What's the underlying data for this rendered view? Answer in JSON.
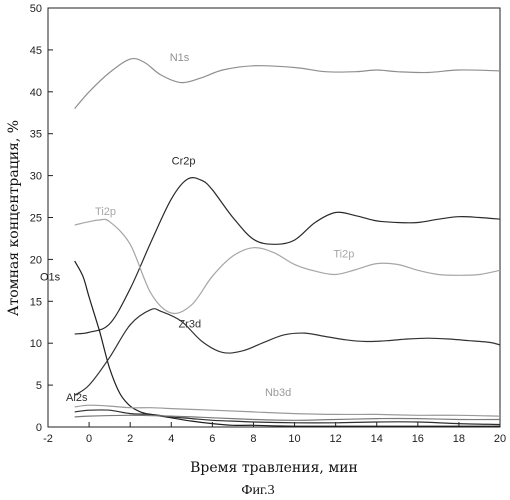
{
  "chart_data": {
    "type": "line",
    "xlabel": "Время травления, мин",
    "ylabel": "Атомная концентрация, %",
    "caption": "Фиг.3",
    "xlim": [
      -2,
      20
    ],
    "ylim": [
      0,
      50
    ],
    "xticks": [
      -2,
      0,
      2,
      4,
      6,
      8,
      10,
      12,
      14,
      16,
      18,
      20
    ],
    "yticks": [
      0,
      5,
      10,
      15,
      20,
      25,
      30,
      35,
      40,
      45,
      50
    ],
    "grid": false,
    "series": [
      {
        "name": "N1s",
        "color": "#8f8f8f",
        "label_at": [
          4.4,
          43.7
        ],
        "points": [
          [
            -0.7,
            38.0
          ],
          [
            0,
            40.0
          ],
          [
            1,
            42.3
          ],
          [
            2,
            43.9
          ],
          [
            2.7,
            43.5
          ],
          [
            3.5,
            42.0
          ],
          [
            4.5,
            41.1
          ],
          [
            5.5,
            41.7
          ],
          [
            6.5,
            42.6
          ],
          [
            8,
            43.1
          ],
          [
            10,
            42.9
          ],
          [
            11.5,
            42.4
          ],
          [
            13,
            42.4
          ],
          [
            14,
            42.6
          ],
          [
            15,
            42.4
          ],
          [
            16.5,
            42.3
          ],
          [
            18,
            42.6
          ],
          [
            20,
            42.5
          ]
        ]
      },
      {
        "name": "Cr2p",
        "color": "#2a2a2a",
        "label_at": [
          4.6,
          31.3
        ],
        "points": [
          [
            -0.7,
            11.1
          ],
          [
            0,
            11.3
          ],
          [
            1,
            12.3
          ],
          [
            2,
            16.5
          ],
          [
            3,
            22.0
          ],
          [
            4,
            27.2
          ],
          [
            4.8,
            29.6
          ],
          [
            5.5,
            29.4
          ],
          [
            6,
            28.3
          ],
          [
            7,
            25.0
          ],
          [
            8,
            22.4
          ],
          [
            9,
            21.8
          ],
          [
            10,
            22.3
          ],
          [
            11,
            24.4
          ],
          [
            12,
            25.6
          ],
          [
            13,
            25.2
          ],
          [
            14,
            24.6
          ],
          [
            15,
            24.4
          ],
          [
            16,
            24.4
          ],
          [
            17,
            24.8
          ],
          [
            18,
            25.1
          ],
          [
            19,
            25.0
          ],
          [
            20,
            24.8
          ]
        ]
      },
      {
        "name": "Ti2p",
        "color": "#a6a6a6",
        "label_at": [
          0.8,
          25.3
        ],
        "points": [
          [
            -0.7,
            24.1
          ],
          [
            0,
            24.5
          ],
          [
            0.5,
            24.7
          ],
          [
            1,
            24.5
          ],
          [
            2,
            21.8
          ],
          [
            3,
            16.0
          ],
          [
            4,
            13.6
          ],
          [
            5,
            14.6
          ],
          [
            6,
            18.0
          ],
          [
            7,
            20.4
          ],
          [
            8,
            21.4
          ],
          [
            9,
            20.8
          ],
          [
            10,
            19.4
          ],
          [
            11,
            18.6
          ],
          [
            12,
            18.2
          ],
          [
            13,
            18.8
          ],
          [
            14,
            19.5
          ],
          [
            15,
            19.4
          ],
          [
            16,
            18.7
          ],
          [
            17,
            18.2
          ],
          [
            18,
            18.1
          ],
          [
            19,
            18.2
          ],
          [
            20,
            18.7
          ]
        ]
      },
      {
        "name": "Ti2p",
        "color": "#a6a6a6",
        "label_at": [
          12.4,
          20.2
        ],
        "points": []
      },
      {
        "name": "O1s",
        "color": "#1f1f1f",
        "label_at": [
          -1.9,
          17.5
        ],
        "points": [
          [
            -0.7,
            19.8
          ],
          [
            -0.3,
            18.0
          ],
          [
            0,
            15.5
          ],
          [
            0.5,
            11.5
          ],
          [
            1,
            7.0
          ],
          [
            1.5,
            4.0
          ],
          [
            2,
            2.5
          ],
          [
            2.5,
            1.8
          ],
          [
            3,
            1.5
          ],
          [
            4,
            1.1
          ],
          [
            5,
            0.7
          ],
          [
            6,
            0.4
          ],
          [
            7,
            0.2
          ],
          [
            8,
            0.2
          ],
          [
            10,
            0.1
          ],
          [
            14,
            0.1
          ],
          [
            20,
            0.1
          ]
        ]
      },
      {
        "name": "Zr3d",
        "color": "#333333",
        "label_at": [
          4.9,
          11.9
        ],
        "points": [
          [
            -0.7,
            3.8
          ],
          [
            0,
            5.0
          ],
          [
            1,
            8.3
          ],
          [
            2,
            12.2
          ],
          [
            3,
            14.0
          ],
          [
            3.5,
            13.8
          ],
          [
            4.5,
            12.6
          ],
          [
            5.5,
            10.2
          ],
          [
            6.5,
            8.9
          ],
          [
            7.5,
            9.1
          ],
          [
            8.5,
            10.1
          ],
          [
            9.5,
            11.0
          ],
          [
            10.5,
            11.2
          ],
          [
            11.5,
            10.8
          ],
          [
            12.5,
            10.4
          ],
          [
            13.5,
            10.2
          ],
          [
            14.5,
            10.3
          ],
          [
            15.5,
            10.5
          ],
          [
            16.5,
            10.6
          ],
          [
            17.5,
            10.5
          ],
          [
            18.5,
            10.3
          ],
          [
            19.5,
            10.1
          ],
          [
            20,
            9.8
          ]
        ]
      },
      {
        "name": "Nb3d",
        "color": "#9a9a9a",
        "label_at": [
          9.2,
          3.7
        ],
        "points": [
          [
            -0.7,
            2.4
          ],
          [
            0,
            2.6
          ],
          [
            1,
            2.5
          ],
          [
            2,
            2.3
          ],
          [
            3,
            2.3
          ],
          [
            4,
            2.2
          ],
          [
            6,
            2.0
          ],
          [
            8,
            1.8
          ],
          [
            10,
            1.6
          ],
          [
            12,
            1.5
          ],
          [
            14,
            1.5
          ],
          [
            16,
            1.4
          ],
          [
            18,
            1.4
          ],
          [
            20,
            1.3
          ]
        ]
      },
      {
        "name": "Al2s",
        "color": "#2f2f2f",
        "label_at": [
          -0.6,
          3.1
        ],
        "points": [
          [
            -0.7,
            1.8
          ],
          [
            0,
            2.0
          ],
          [
            1,
            2.0
          ],
          [
            2,
            1.6
          ],
          [
            3,
            1.5
          ],
          [
            4,
            1.2
          ],
          [
            5,
            1.0
          ],
          [
            6,
            0.8
          ],
          [
            7,
            0.7
          ],
          [
            8,
            0.6
          ],
          [
            10,
            0.5
          ],
          [
            12,
            0.5
          ],
          [
            14,
            0.6
          ],
          [
            16,
            0.6
          ],
          [
            18,
            0.4
          ],
          [
            20,
            0.3
          ]
        ]
      },
      {
        "name": "",
        "color": "#7a7a7a",
        "label_at": null,
        "points": [
          [
            -0.7,
            1.2
          ],
          [
            0,
            1.3
          ],
          [
            2,
            1.4
          ],
          [
            4,
            1.3
          ],
          [
            6,
            1.1
          ],
          [
            8,
            0.9
          ],
          [
            10,
            0.8
          ],
          [
            12,
            0.9
          ],
          [
            14,
            1.0
          ],
          [
            16,
            1.0
          ],
          [
            18,
            0.9
          ],
          [
            20,
            0.9
          ]
        ]
      }
    ]
  }
}
